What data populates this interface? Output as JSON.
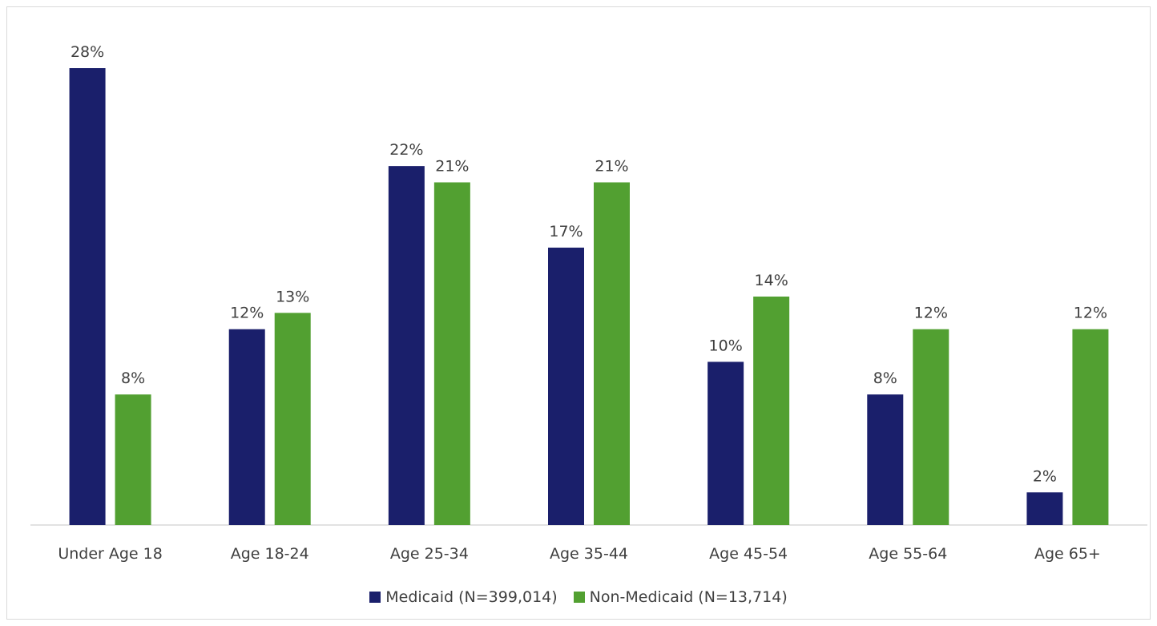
{
  "chart_data": {
    "type": "bar",
    "categories": [
      "Under Age 18",
      "Age 18-24",
      "Age 25-34",
      "Age 35-44",
      "Age 45-54",
      "Age 55-64",
      "Age 65+"
    ],
    "series": [
      {
        "name": "Medicaid (N=399,014)",
        "color": "#1a1f6b",
        "values": [
          28,
          12,
          22,
          17,
          10,
          8,
          2
        ],
        "labels": [
          "28%",
          "12%",
          "22%",
          "17%",
          "10%",
          "8%",
          "2%"
        ]
      },
      {
        "name": "Non-Medicaid (N=13,714)",
        "color": "#52a031",
        "values": [
          8,
          13,
          21,
          21,
          14,
          12,
          12
        ],
        "labels": [
          "8%",
          "13%",
          "21%",
          "21%",
          "14%",
          "12%",
          "12%"
        ]
      }
    ],
    "ylim": [
      0,
      30
    ],
    "grid": false,
    "legend_position": "bottom"
  }
}
